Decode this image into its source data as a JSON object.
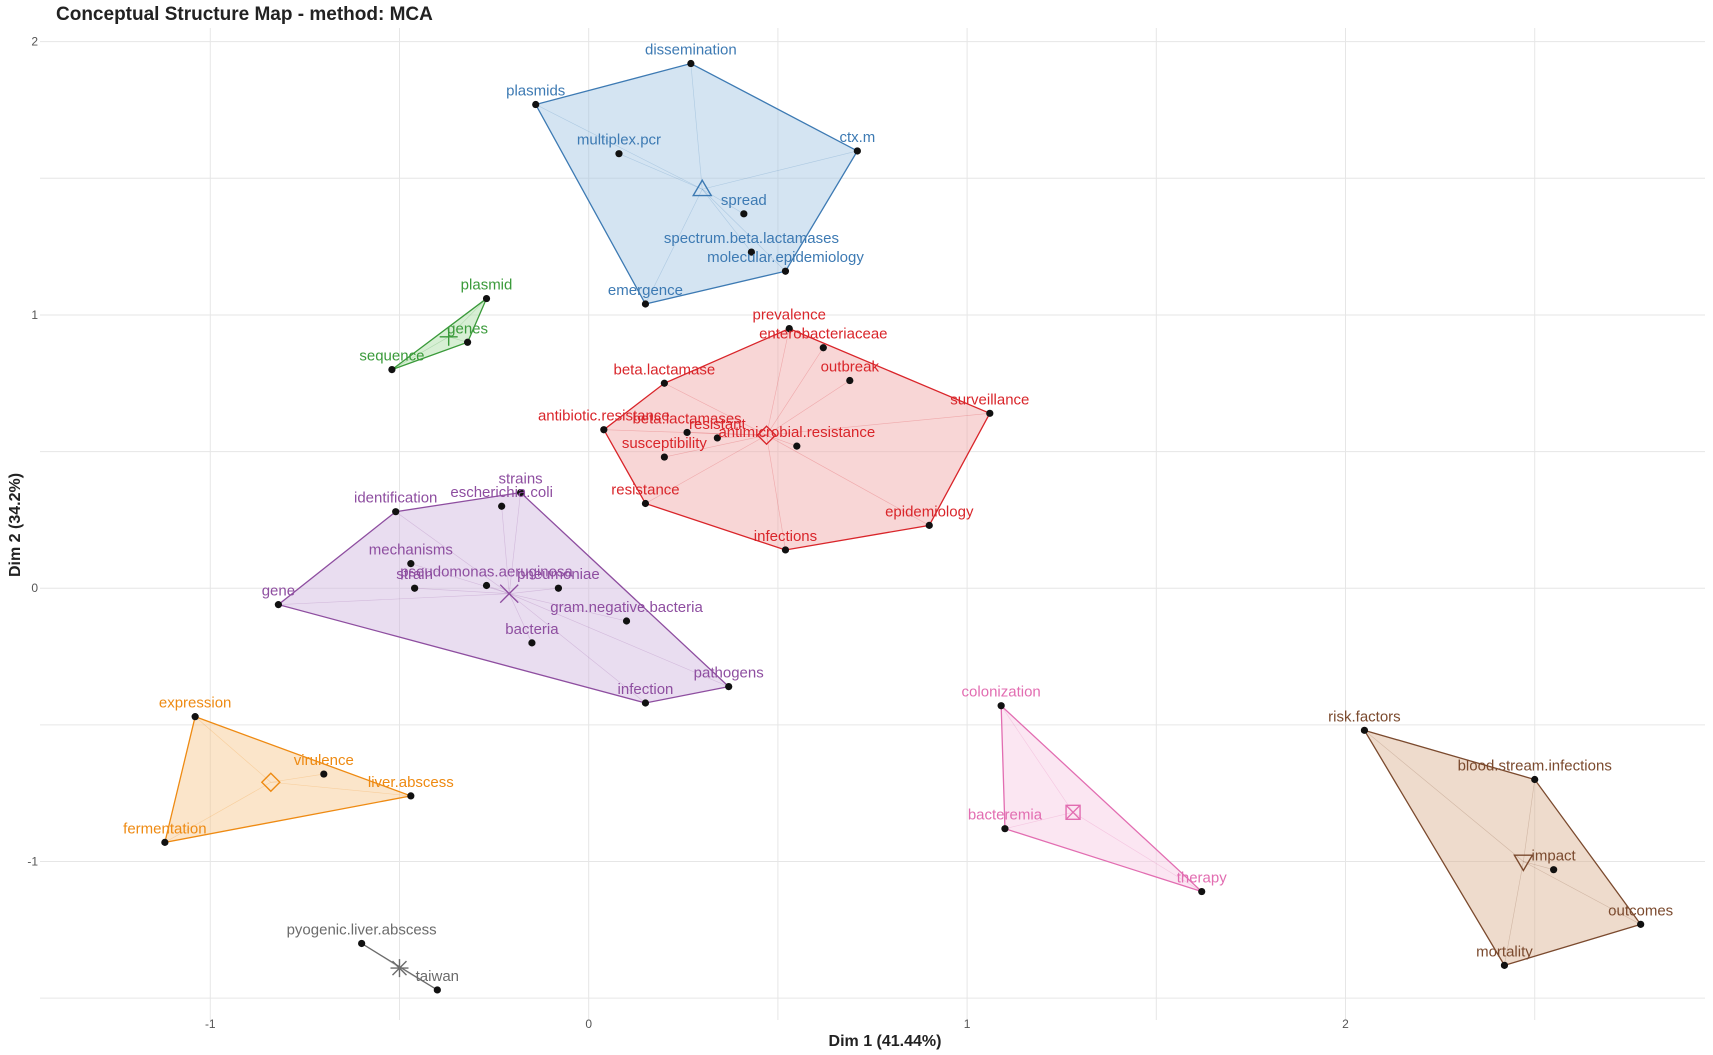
{
  "chart_data": {
    "type": "scatter",
    "title": "Conceptual Structure Map - method: MCA",
    "xlabel": "Dim 1 (41.44%)",
    "ylabel": "Dim 2 (34.2%)",
    "xlim": [
      -1.45,
      2.95
    ],
    "ylim": [
      -1.58,
      2.05
    ],
    "x_ticks": [
      -1,
      0,
      1,
      2
    ],
    "y_ticks": [
      -1,
      0,
      1,
      2
    ],
    "grid": true,
    "clusters": [
      {
        "color": "#3d7ab3",
        "fill": "#9fc3e3",
        "centroid_marker": "triangle-up",
        "centroid": [
          0.3,
          1.46
        ],
        "hull": [
          [
            0.27,
            1.92
          ],
          [
            0.71,
            1.6
          ],
          [
            0.52,
            1.16
          ],
          [
            0.15,
            1.04
          ],
          [
            -0.14,
            1.77
          ]
        ],
        "points": [
          {
            "label": "dissemination",
            "x": 0.27,
            "y": 1.92
          },
          {
            "label": "plasmids",
            "x": -0.14,
            "y": 1.77
          },
          {
            "label": "multiplex.pcr",
            "x": 0.08,
            "y": 1.59
          },
          {
            "label": "ctx.m",
            "x": 0.71,
            "y": 1.6
          },
          {
            "label": "spread",
            "x": 0.41,
            "y": 1.37
          },
          {
            "label": "spectrum.beta.lactamases",
            "x": 0.43,
            "y": 1.23
          },
          {
            "label": "molecular.epidemiology",
            "x": 0.52,
            "y": 1.16
          },
          {
            "label": "emergence",
            "x": 0.15,
            "y": 1.04
          }
        ]
      },
      {
        "color": "#3a9a3a",
        "fill": "#a6dca0",
        "centroid_marker": "plus",
        "centroid": [
          -0.37,
          0.92
        ],
        "hull": [
          [
            -0.27,
            1.06
          ],
          [
            -0.32,
            0.9
          ],
          [
            -0.52,
            0.8
          ]
        ],
        "points": [
          {
            "label": "plasmid",
            "x": -0.27,
            "y": 1.06
          },
          {
            "label": "genes",
            "x": -0.32,
            "y": 0.9
          },
          {
            "label": "sequence",
            "x": -0.52,
            "y": 0.8
          }
        ]
      },
      {
        "color": "#d9252a",
        "fill": "#f0a3a3",
        "centroid_marker": "diamond",
        "centroid": [
          0.47,
          0.56
        ],
        "hull": [
          [
            0.53,
            0.95
          ],
          [
            1.06,
            0.64
          ],
          [
            0.9,
            0.23
          ],
          [
            0.52,
            0.14
          ],
          [
            0.15,
            0.31
          ],
          [
            0.04,
            0.58
          ],
          [
            0.2,
            0.75
          ]
        ],
        "points": [
          {
            "label": "prevalence",
            "x": 0.53,
            "y": 0.95
          },
          {
            "label": "enterobacteriaceae",
            "x": 0.62,
            "y": 0.88
          },
          {
            "label": "outbreak",
            "x": 0.69,
            "y": 0.76
          },
          {
            "label": "beta.lactamase",
            "x": 0.2,
            "y": 0.75
          },
          {
            "label": "surveillance",
            "x": 1.06,
            "y": 0.64
          },
          {
            "label": "beta.lactamases",
            "x": 0.26,
            "y": 0.57
          },
          {
            "label": "antibiotic.resistance",
            "x": 0.04,
            "y": 0.58
          },
          {
            "label": "resistant",
            "x": 0.34,
            "y": 0.55
          },
          {
            "label": "antimicrobial.resistance",
            "x": 0.55,
            "y": 0.52
          },
          {
            "label": "susceptibility",
            "x": 0.2,
            "y": 0.48
          },
          {
            "label": "resistance",
            "x": 0.15,
            "y": 0.31
          },
          {
            "label": "epidemiology",
            "x": 0.9,
            "y": 0.23
          },
          {
            "label": "infections",
            "x": 0.52,
            "y": 0.14
          }
        ]
      },
      {
        "color": "#8e4ea0",
        "fill": "#cfb4de",
        "centroid_marker": "x",
        "centroid": [
          -0.21,
          -0.02
        ],
        "hull": [
          [
            -0.18,
            0.35
          ],
          [
            0.37,
            -0.36
          ],
          [
            0.15,
            -0.42
          ],
          [
            -0.82,
            -0.06
          ],
          [
            -0.51,
            0.28
          ]
        ],
        "points": [
          {
            "label": "strains",
            "x": -0.18,
            "y": 0.35
          },
          {
            "label": "identification",
            "x": -0.51,
            "y": 0.28
          },
          {
            "label": "escherichia.coli",
            "x": -0.23,
            "y": 0.3
          },
          {
            "label": "mechanisms",
            "x": -0.47,
            "y": 0.09
          },
          {
            "label": "pseudomonas.aeruginosa",
            "x": -0.27,
            "y": 0.01
          },
          {
            "label": "gene",
            "x": -0.82,
            "y": -0.06
          },
          {
            "label": "strain",
            "x": -0.46,
            "y": 0.0
          },
          {
            "label": "pneumoniae",
            "x": -0.08,
            "y": 0.0
          },
          {
            "label": "gram.negative.bacteria",
            "x": 0.1,
            "y": -0.12
          },
          {
            "label": "bacteria",
            "x": -0.15,
            "y": -0.2
          },
          {
            "label": "pathogens",
            "x": 0.37,
            "y": -0.36
          },
          {
            "label": "infection",
            "x": 0.15,
            "y": -0.42
          }
        ]
      },
      {
        "color": "#ee8a12",
        "fill": "#f6c68a",
        "centroid_marker": "diamond",
        "centroid": [
          -0.84,
          -0.71
        ],
        "hull": [
          [
            -1.04,
            -0.47
          ],
          [
            -0.47,
            -0.76
          ],
          [
            -1.12,
            -0.93
          ]
        ],
        "points": [
          {
            "label": "expression",
            "x": -1.04,
            "y": -0.47
          },
          {
            "label": "virulence",
            "x": -0.7,
            "y": -0.68
          },
          {
            "label": "liver.abscess",
            "x": -0.47,
            "y": -0.76
          },
          {
            "label": "fermentation",
            "x": -1.12,
            "y": -0.93
          }
        ]
      },
      {
        "color": "#e26db1",
        "fill": "#f6c8e2",
        "centroid_marker": "square-x",
        "centroid": [
          1.28,
          -0.82
        ],
        "hull": [
          [
            1.09,
            -0.43
          ],
          [
            1.62,
            -1.11
          ],
          [
            1.1,
            -0.88
          ]
        ],
        "points": [
          {
            "label": "colonization",
            "x": 1.09,
            "y": -0.43
          },
          {
            "label": "bacteremia",
            "x": 1.1,
            "y": -0.88
          },
          {
            "label": "therapy",
            "x": 1.62,
            "y": -1.11
          }
        ]
      },
      {
        "color": "#7b4a2e",
        "fill": "#d9b08e",
        "centroid_marker": "triangle-down",
        "centroid": [
          2.47,
          -1.0
        ],
        "hull": [
          [
            2.05,
            -0.52
          ],
          [
            2.5,
            -0.7
          ],
          [
            2.78,
            -1.23
          ],
          [
            2.42,
            -1.38
          ]
        ],
        "points": [
          {
            "label": "risk.factors",
            "x": 2.05,
            "y": -0.52
          },
          {
            "label": "blood.stream.infections",
            "x": 2.5,
            "y": -0.7
          },
          {
            "label": "impact",
            "x": 2.55,
            "y": -1.03
          },
          {
            "label": "outcomes",
            "x": 2.78,
            "y": -1.23
          },
          {
            "label": "mortality",
            "x": 2.42,
            "y": -1.38
          }
        ]
      },
      {
        "color": "#6b6b6b",
        "fill": "none",
        "centroid_marker": "asterisk",
        "centroid": [
          -0.5,
          -1.39
        ],
        "hull": [
          [
            -0.6,
            -1.3
          ],
          [
            -0.4,
            -1.47
          ]
        ],
        "points": [
          {
            "label": "pyogenic.liver.abscess",
            "x": -0.6,
            "y": -1.3
          },
          {
            "label": "taiwan",
            "x": -0.4,
            "y": -1.47
          }
        ]
      }
    ]
  }
}
